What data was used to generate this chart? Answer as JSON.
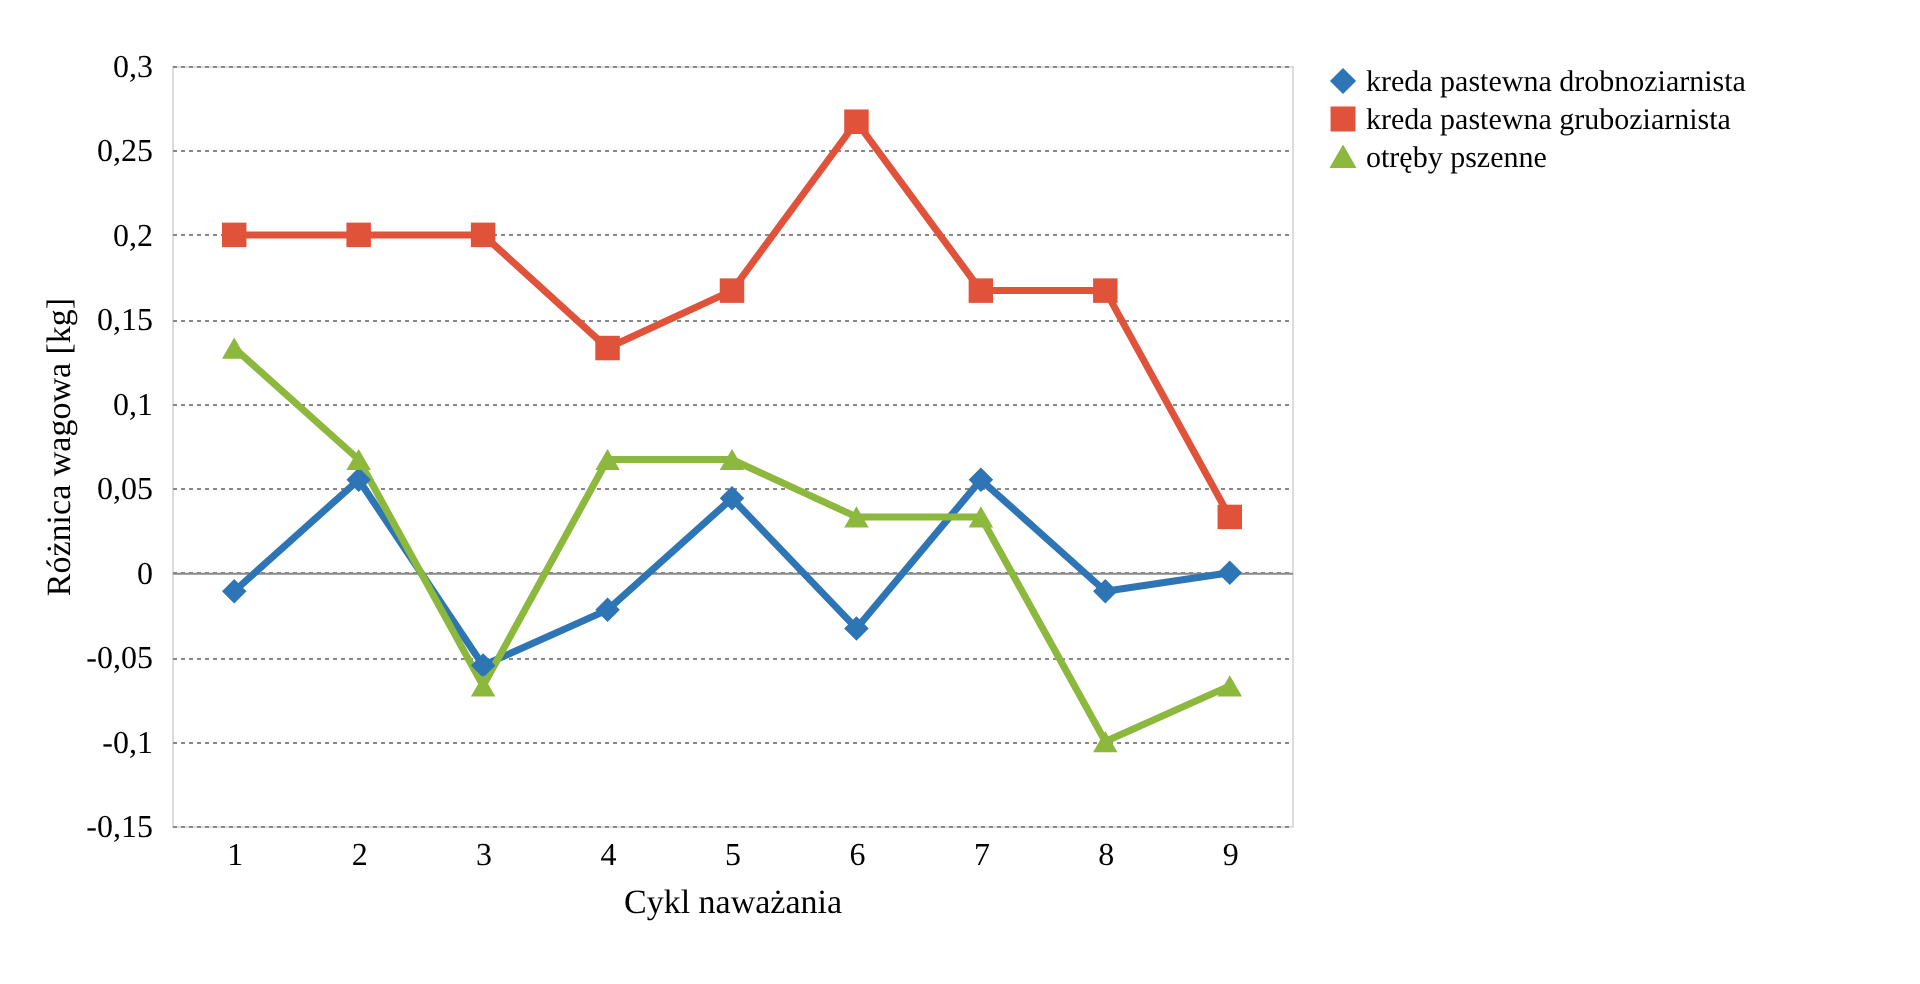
{
  "chart_data": {
    "type": "line",
    "xlabel": "Cykl naważania",
    "ylabel": "Różnica wagowa [kg]",
    "categories": [
      "1",
      "2",
      "3",
      "4",
      "5",
      "6",
      "7",
      "8",
      "9"
    ],
    "series": [
      {
        "name": "kreda pastewna drobnoziarnista",
        "color": "#2e75b6",
        "marker": "diamond",
        "values": [
          -0.011,
          0.055,
          -0.055,
          -0.022,
          0.044,
          -0.033,
          0.055,
          -0.011,
          0
        ]
      },
      {
        "name": "kreda pastewna gruboziarnista",
        "color": "#e0533a",
        "marker": "square",
        "values": [
          0.2,
          0.2,
          0.2,
          0.133,
          0.167,
          0.267,
          0.167,
          0.167,
          0.033
        ]
      },
      {
        "name": "otręby pszenne",
        "color": "#8db83e",
        "marker": "triangle",
        "values": [
          0.133,
          0.067,
          -0.067,
          0.067,
          0.067,
          0.033,
          0.033,
          -0.1,
          -0.067
        ]
      }
    ],
    "ylim": [
      -0.15,
      0.3
    ],
    "yticks": [
      {
        "value": -0.15,
        "label": "-0,15"
      },
      {
        "value": -0.1,
        "label": "-0,1"
      },
      {
        "value": -0.05,
        "label": "-0,05"
      },
      0,
      {
        "value": 0.05,
        "label": "0,05"
      },
      {
        "value": 0.1,
        "label": "0,1"
      },
      {
        "value": 0.15,
        "label": "0,15"
      },
      {
        "value": 0.2,
        "label": "0,2"
      },
      {
        "value": 0.25,
        "label": "0,25"
      },
      {
        "value": 0.3,
        "label": "0,3"
      }
    ],
    "grid": "y",
    "legend": "right"
  }
}
